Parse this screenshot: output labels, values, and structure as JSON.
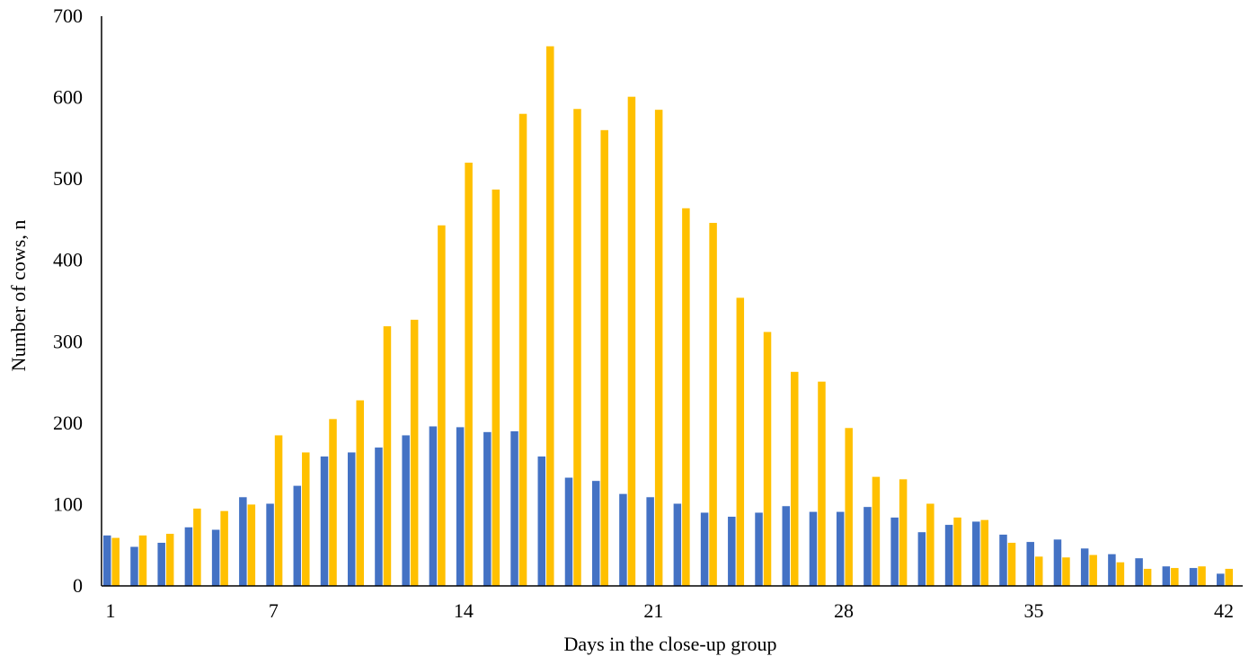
{
  "chart_data": {
    "type": "bar",
    "title": "",
    "xlabel": "Days in the close-up group",
    "ylabel": "Number of cows, n",
    "ylim": [
      0,
      700
    ],
    "yticks": [
      "0",
      "100",
      "200",
      "300",
      "400",
      "500",
      "600",
      "700"
    ],
    "x_tick_labels": [
      "1",
      "7",
      "14",
      "21",
      "28",
      "35",
      "42"
    ],
    "categories": [
      1,
      2,
      3,
      4,
      5,
      6,
      7,
      8,
      9,
      10,
      11,
      12,
      13,
      14,
      15,
      16,
      17,
      18,
      19,
      20,
      21,
      22,
      23,
      24,
      25,
      26,
      27,
      28,
      29,
      30,
      31,
      32,
      33,
      34,
      35,
      36,
      37,
      38,
      39,
      40,
      41,
      42
    ],
    "grid": false,
    "legend": "none",
    "series": [
      {
        "color": "#4472C4",
        "values": [
          62,
          48,
          53,
          72,
          69,
          109,
          101,
          123,
          159,
          164,
          170,
          185,
          196,
          195,
          189,
          190,
          159,
          133,
          129,
          113,
          109,
          101,
          90,
          85,
          90,
          98,
          91,
          91,
          97,
          84,
          66,
          75,
          79,
          63,
          54,
          57,
          46,
          39,
          34,
          24,
          22,
          15
        ]
      },
      {
        "color": "#FFC000",
        "values": [
          59,
          62,
          64,
          95,
          92,
          100,
          185,
          164,
          205,
          228,
          319,
          327,
          443,
          520,
          487,
          580,
          663,
          586,
          560,
          601,
          585,
          464,
          446,
          354,
          312,
          263,
          251,
          194,
          134,
          131,
          101,
          84,
          81,
          53,
          36,
          35,
          38,
          29,
          21,
          22,
          24,
          21
        ]
      }
    ]
  }
}
